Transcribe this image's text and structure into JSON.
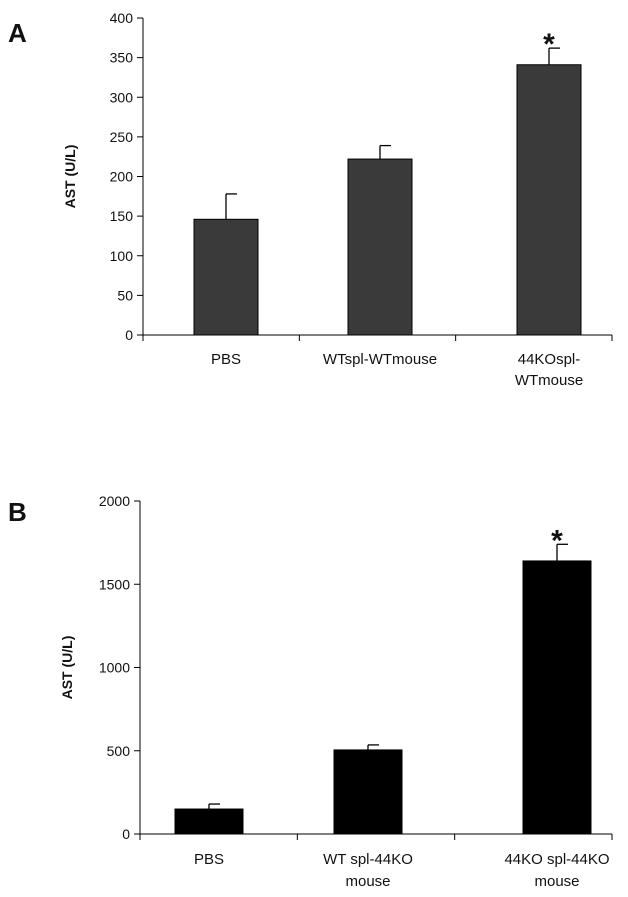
{
  "chart_data": [
    {
      "panel": "A",
      "type": "bar",
      "categories": [
        [
          "PBS"
        ],
        [
          "WTspl-WTmouse"
        ],
        [
          "44KOspl-",
          "WTmouse"
        ]
      ],
      "values": [
        146,
        222,
        341
      ],
      "error_bars": [
        32,
        17,
        21
      ],
      "significance": [
        "",
        "",
        "*"
      ],
      "ylabel": "AST (U/L)",
      "ylim": [
        0,
        400
      ],
      "yticks": [
        0,
        50,
        100,
        150,
        200,
        250,
        300,
        350,
        400
      ],
      "bar_color": "#3a3a3a",
      "grid": false
    },
    {
      "panel": "B",
      "type": "bar",
      "categories": [
        [
          "PBS"
        ],
        [
          "WT spl-44KO",
          "mouse"
        ],
        [
          "44KO spl-44KO",
          "mouse"
        ]
      ],
      "values": [
        150,
        505,
        1640
      ],
      "error_bars": [
        30,
        30,
        100
      ],
      "significance": [
        "",
        "",
        "*"
      ],
      "ylabel": "AST (U/L)",
      "ylim": [
        0,
        2000
      ],
      "yticks": [
        0,
        500,
        1000,
        1500,
        2000
      ],
      "bar_color": "#000000",
      "grid": false
    }
  ]
}
